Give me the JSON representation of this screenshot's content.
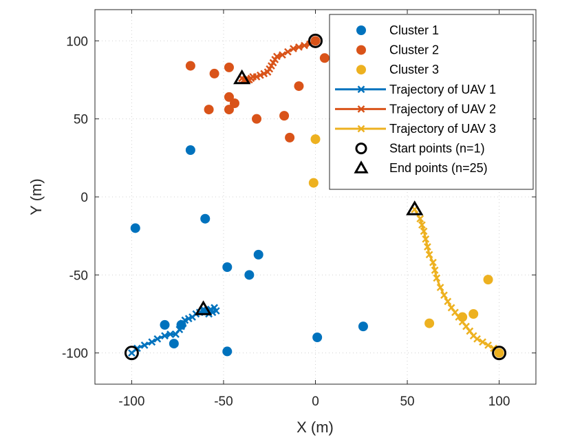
{
  "chart_data": {
    "type": "scatter",
    "title": "",
    "xlabel": "X (m)",
    "ylabel": "Y (m)",
    "xlim": [
      -120,
      120
    ],
    "ylim": [
      -120,
      120
    ],
    "xticks": [
      -100,
      -50,
      0,
      50,
      100
    ],
    "yticks": [
      -100,
      -50,
      0,
      50,
      100
    ],
    "xtick_labels": [
      "-100",
      "-50",
      "0",
      "50",
      "100"
    ],
    "ytick_labels": [
      "-100",
      "-50",
      "0",
      "50",
      "100"
    ],
    "grid": true,
    "legend_position": "top-right",
    "clusters": [
      {
        "name": "Cluster 1",
        "color": "#0072BD",
        "points": [
          [
            -68,
            30
          ],
          [
            -98,
            -20
          ],
          [
            -60,
            -14
          ],
          [
            -48,
            -45
          ],
          [
            -36,
            -50
          ],
          [
            -31,
            -37
          ],
          [
            -82,
            -82
          ],
          [
            -73,
            -82
          ],
          [
            -77,
            -94
          ],
          [
            -48,
            -99
          ],
          [
            1,
            -90
          ],
          [
            26,
            -83
          ]
        ]
      },
      {
        "name": "Cluster 2",
        "color": "#D95319",
        "points": [
          [
            -68,
            84
          ],
          [
            -55,
            79
          ],
          [
            -47,
            83
          ],
          [
            -47,
            64
          ],
          [
            -44,
            60
          ],
          [
            -47,
            56
          ],
          [
            -58,
            56
          ],
          [
            -32,
            50
          ],
          [
            -17,
            52
          ],
          [
            -14,
            38
          ],
          [
            -9,
            71
          ],
          [
            5,
            89
          ],
          [
            0,
            100
          ]
        ]
      },
      {
        "name": "Cluster 3",
        "color": "#EDB120",
        "points": [
          [
            0,
            37
          ],
          [
            -1,
            9
          ],
          [
            94,
            -53
          ],
          [
            62,
            -81
          ],
          [
            80,
            -77
          ],
          [
            86,
            -75
          ],
          [
            100,
            -100
          ]
        ]
      }
    ],
    "trajectories": [
      {
        "name": "Trajectory of UAV 1",
        "color": "#0072BD",
        "points": [
          [
            -100,
            -100
          ],
          [
            -97,
            -97
          ],
          [
            -93,
            -95
          ],
          [
            -89,
            -93
          ],
          [
            -86,
            -91
          ],
          [
            -82,
            -89
          ],
          [
            -79,
            -88
          ],
          [
            -76,
            -88
          ],
          [
            -74,
            -85
          ],
          [
            -73,
            -83
          ],
          [
            -72,
            -81
          ],
          [
            -71,
            -79
          ],
          [
            -69,
            -78
          ],
          [
            -67,
            -77
          ],
          [
            -65,
            -75
          ],
          [
            -63,
            -74
          ],
          [
            -61,
            -73
          ],
          [
            -59,
            -73
          ],
          [
            -57,
            -72
          ],
          [
            -55,
            -71
          ],
          [
            -54,
            -73
          ],
          [
            -56,
            -74
          ],
          [
            -58,
            -75
          ],
          [
            -60,
            -73
          ],
          [
            -61,
            -72
          ]
        ]
      },
      {
        "name": "Trajectory of UAV 2",
        "color": "#D95319",
        "points": [
          [
            0,
            100
          ],
          [
            -3,
            98
          ],
          [
            -6,
            97
          ],
          [
            -9,
            96
          ],
          [
            -12,
            95
          ],
          [
            -15,
            93
          ],
          [
            -18,
            91
          ],
          [
            -21,
            90
          ],
          [
            -22,
            88
          ],
          [
            -23,
            86
          ],
          [
            -24,
            84
          ],
          [
            -25,
            82
          ],
          [
            -26,
            80
          ],
          [
            -28,
            79
          ],
          [
            -30,
            78
          ],
          [
            -32,
            77
          ],
          [
            -34,
            77
          ],
          [
            -35,
            76
          ],
          [
            -36,
            75
          ],
          [
            -37,
            75
          ],
          [
            -38,
            75
          ],
          [
            -39,
            75
          ],
          [
            -40,
            76
          ],
          [
            -40,
            76
          ],
          [
            -40,
            76
          ]
        ]
      },
      {
        "name": "Trajectory of UAV 3",
        "color": "#EDB120",
        "points": [
          [
            100,
            -100
          ],
          [
            97,
            -97
          ],
          [
            94,
            -95
          ],
          [
            91,
            -93
          ],
          [
            88,
            -91
          ],
          [
            86,
            -89
          ],
          [
            84,
            -86
          ],
          [
            82,
            -83
          ],
          [
            80,
            -80
          ],
          [
            78,
            -77
          ],
          [
            76,
            -74
          ],
          [
            74,
            -71
          ],
          [
            72,
            -67
          ],
          [
            70,
            -63
          ],
          [
            68,
            -58
          ],
          [
            66,
            -52
          ],
          [
            65,
            -47
          ],
          [
            64,
            -42
          ],
          [
            62,
            -37
          ],
          [
            61,
            -32
          ],
          [
            60,
            -27
          ],
          [
            59,
            -22
          ],
          [
            58,
            -18
          ],
          [
            57,
            -14
          ],
          [
            54,
            -8
          ]
        ]
      }
    ],
    "start_points": {
      "label": "Start points (n=1)",
      "points": [
        [
          -100,
          -100
        ],
        [
          0,
          100
        ],
        [
          100,
          -100
        ]
      ]
    },
    "end_points": {
      "label": "End points (n=25)",
      "points": [
        [
          -61,
          -72
        ],
        [
          -40,
          76
        ],
        [
          54,
          -8
        ]
      ]
    }
  }
}
